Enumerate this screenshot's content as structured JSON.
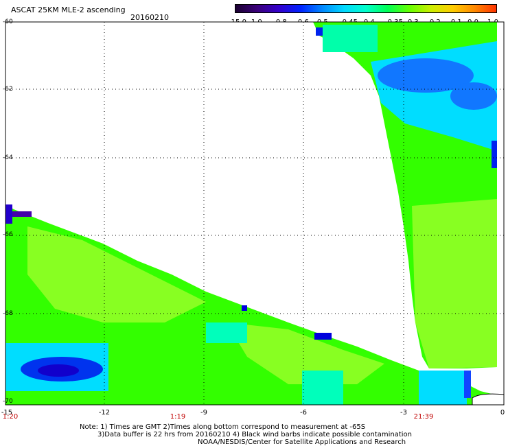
{
  "header": {
    "title": "ASCAT 25KM MLE-2 ascending",
    "date": "20160210"
  },
  "colorbar": {
    "labels": [
      "-15.0",
      "-1.0",
      "-0.8",
      "-0.6",
      "-0.5",
      "-0.45",
      "-0.4",
      "-0.35",
      "-0.3",
      "-0.2",
      "-0.1",
      "0.0",
      "1.0"
    ],
    "colors": [
      "#1a0030",
      "#3a007a",
      "#3300cc",
      "#0022ff",
      "#0088ff",
      "#00d8ff",
      "#00ffcc",
      "#00ff55",
      "#66ff00",
      "#ccee00",
      "#ffcc00",
      "#ff8800",
      "#ff3300"
    ]
  },
  "axes": {
    "lat_labels": [
      "-60",
      "-62",
      "-64",
      "-66",
      "-68",
      "-70"
    ],
    "lon_labels": [
      "-15",
      "-12",
      "-9",
      "-6",
      "-3",
      "0"
    ],
    "time_labels": [
      "1:20",
      "1:19",
      "21:39"
    ]
  },
  "notes": {
    "line1": "Note: 1) Times are GMT 2)Times along bottom correspond to measurement at -65S",
    "line2": "3)Data buffer is 22 hrs from 20160210 4) Black wind barbs indicate possible contamination",
    "line3": "NOAA/NESDIS/Center for Satellite Applications and Research"
  },
  "palette": {
    "green": "#33ff00",
    "lime": "#77ff11",
    "aqua": "#00ffaa",
    "cyan": "#00ddff",
    "blue": "#1177ff",
    "deep_blue": "#0022ee",
    "navy": "#2200cc"
  }
}
